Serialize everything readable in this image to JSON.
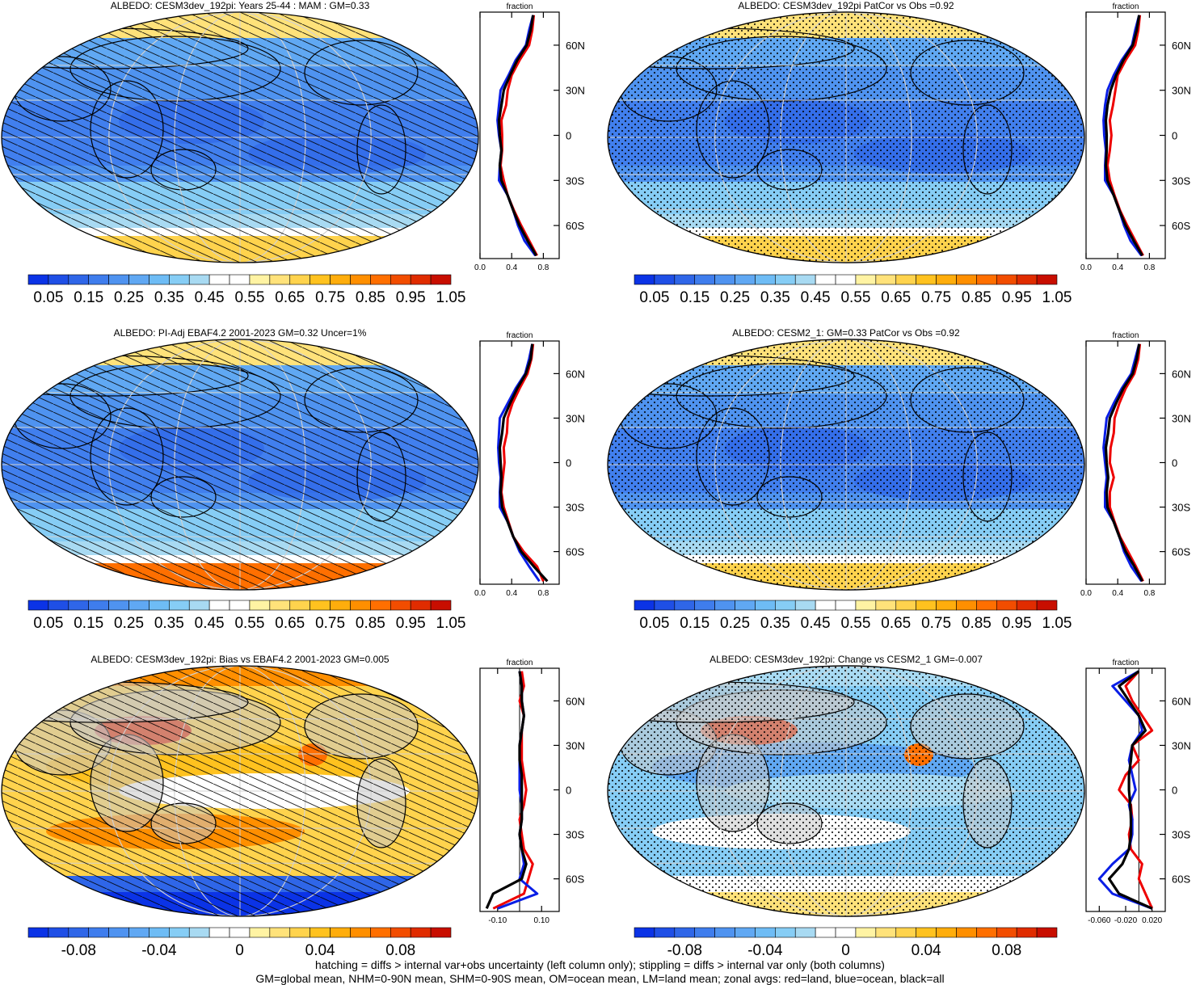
{
  "colors": {
    "abs_scale": [
      "#0b33e6",
      "#1f4fe6",
      "#2f66e8",
      "#3f7ded",
      "#4f93f0",
      "#60a8f3",
      "#6ebcf5",
      "#86cdf5",
      "#a8daf2",
      "#ffffff",
      "#ffffff",
      "#fff3a3",
      "#ffe27a",
      "#ffd34d",
      "#ffc21f",
      "#ffad0c",
      "#ff8f00",
      "#ff6f00",
      "#f24d00",
      "#e02c00",
      "#c80e00"
    ],
    "diff_scale": [
      "#0b33e6",
      "#1f4fe6",
      "#2f66e8",
      "#3f7ded",
      "#4f93f0",
      "#60a8f3",
      "#6ebcf5",
      "#86cdf5",
      "#a8daf2",
      "#ffffff",
      "#ffffff",
      "#fff3a3",
      "#ffe27a",
      "#ffd34d",
      "#ffc21f",
      "#ffad0c",
      "#ff8f00",
      "#ff6f00",
      "#f24d00",
      "#e02c00",
      "#c80e00"
    ],
    "land_gray": "#c8c8c8",
    "zonal_land": "#ee0000",
    "zonal_ocean": "#0a1ee6",
    "zonal_all": "#000000"
  },
  "common": {
    "zonal_title": "fraction",
    "lat_labels": [
      "60N",
      "30N",
      "0",
      "30S",
      "60S"
    ],
    "abs_ticks": [
      "0.05",
      "0.15",
      "0.25",
      "0.35",
      "0.45",
      "0.55",
      "0.65",
      "0.75",
      "0.85",
      "0.95",
      "1.05"
    ],
    "diff_ticks": [
      "-0.08",
      "-0.04",
      "0",
      "0.04",
      "0.08"
    ]
  },
  "panels": [
    {
      "id": "p1",
      "title": "ALBEDO: CESM3dev_192pi: Years 25-44 : MAM : GM=0.33",
      "kind": "abs",
      "overlay": "hatch",
      "zonal_ticks": [
        "0.0",
        "0.4",
        "0.8"
      ]
    },
    {
      "id": "p2",
      "title": "ALBEDO: CESM3dev_192pi PatCor vs Obs =0.92",
      "kind": "abs",
      "overlay": "stipple",
      "zonal_ticks": [
        "0.0",
        "0.4",
        "0.8"
      ]
    },
    {
      "id": "p3",
      "title": "ALBEDO: PI-Adj EBAF4.2 2001-2023 GM=0.32 Uncer=1%",
      "kind": "abs",
      "overlay": "hatch",
      "zonal_ticks": [
        "0.0",
        "0.4",
        "0.8"
      ]
    },
    {
      "id": "p4",
      "title": "ALBEDO: CESM2_1: GM=0.33 PatCor vs Obs =0.92",
      "kind": "abs",
      "overlay": "stipple",
      "zonal_ticks": [
        "0.0",
        "0.4",
        "0.8"
      ]
    },
    {
      "id": "p5",
      "title": "ALBEDO: CESM3dev_192pi: Bias vs EBAF4.2 2001-2023 GM=0.005",
      "kind": "diff",
      "overlay": "hatch",
      "zonal_ticks": [
        "-0.10",
        "0.10"
      ]
    },
    {
      "id": "p6",
      "title": "ALBEDO: CESM3dev_192pi: Change vs CESM2_1 GM=-0.007",
      "kind": "diff",
      "overlay": "stipple",
      "zonal_ticks": [
        "-0.060",
        "-0.020",
        "0.020"
      ]
    }
  ],
  "chart_data": [
    {
      "type": "line",
      "title": "fraction",
      "panel": "p1",
      "x_label": "fraction",
      "y": "latitude",
      "xlim": [
        0.0,
        1.0
      ],
      "x_ticks": [
        0.0,
        0.4,
        0.8
      ],
      "lat": [
        80,
        70,
        60,
        50,
        40,
        30,
        20,
        10,
        0,
        -10,
        -20,
        -30,
        -40,
        -50,
        -60,
        -70,
        -80
      ],
      "series": [
        {
          "name": "red=land",
          "values": [
            0.68,
            0.66,
            0.62,
            0.5,
            0.4,
            0.35,
            0.33,
            0.27,
            0.28,
            0.28,
            0.26,
            0.3,
            0.35,
            0.43,
            0.52,
            0.62,
            0.72
          ]
        },
        {
          "name": "blue=ocean",
          "values": [
            0.67,
            0.62,
            0.58,
            0.45,
            0.36,
            0.26,
            0.24,
            0.22,
            0.24,
            0.27,
            0.25,
            0.24,
            0.35,
            0.42,
            0.48,
            0.56,
            0.7
          ]
        },
        {
          "name": "black=all",
          "values": [
            0.67,
            0.64,
            0.59,
            0.47,
            0.38,
            0.3,
            0.27,
            0.24,
            0.25,
            0.27,
            0.25,
            0.27,
            0.35,
            0.42,
            0.5,
            0.6,
            0.71
          ]
        }
      ]
    },
    {
      "type": "line",
      "title": "fraction",
      "panel": "p2",
      "x_label": "fraction",
      "y": "latitude",
      "xlim": [
        0.0,
        1.0
      ],
      "x_ticks": [
        0.0,
        0.4,
        0.8
      ],
      "lat": [
        80,
        70,
        60,
        50,
        40,
        30,
        20,
        10,
        0,
        -10,
        -20,
        -30,
        -40,
        -50,
        -60,
        -70,
        -80
      ],
      "series": [
        {
          "name": "red=land",
          "values": [
            0.68,
            0.66,
            0.62,
            0.5,
            0.4,
            0.37,
            0.34,
            0.3,
            0.32,
            0.3,
            0.27,
            0.3,
            0.36,
            0.43,
            0.52,
            0.62,
            0.72
          ]
        },
        {
          "name": "blue=ocean",
          "values": [
            0.67,
            0.62,
            0.58,
            0.45,
            0.35,
            0.27,
            0.24,
            0.22,
            0.23,
            0.25,
            0.24,
            0.24,
            0.35,
            0.42,
            0.48,
            0.56,
            0.7
          ]
        },
        {
          "name": "black=all",
          "values": [
            0.67,
            0.64,
            0.59,
            0.47,
            0.38,
            0.31,
            0.27,
            0.25,
            0.26,
            0.26,
            0.25,
            0.27,
            0.35,
            0.42,
            0.5,
            0.6,
            0.71
          ]
        }
      ]
    },
    {
      "type": "line",
      "title": "fraction",
      "panel": "p3",
      "x_label": "fraction",
      "y": "latitude",
      "xlim": [
        0.0,
        1.0
      ],
      "x_ticks": [
        0.0,
        0.4,
        0.8
      ],
      "lat": [
        80,
        70,
        60,
        50,
        40,
        30,
        20,
        10,
        0,
        -10,
        -20,
        -30,
        -40,
        -50,
        -60,
        -70,
        -80
      ],
      "series": [
        {
          "name": "red=land",
          "values": [
            0.67,
            0.65,
            0.6,
            0.5,
            0.41,
            0.35,
            0.34,
            0.3,
            0.31,
            0.29,
            0.27,
            0.3,
            0.36,
            0.42,
            0.55,
            0.72,
            0.8
          ]
        },
        {
          "name": "blue=ocean",
          "values": [
            0.66,
            0.62,
            0.57,
            0.45,
            0.35,
            0.25,
            0.24,
            0.23,
            0.24,
            0.26,
            0.25,
            0.25,
            0.35,
            0.42,
            0.5,
            0.62,
            0.75
          ]
        },
        {
          "name": "black=all",
          "values": [
            0.66,
            0.64,
            0.58,
            0.47,
            0.38,
            0.3,
            0.28,
            0.25,
            0.26,
            0.27,
            0.26,
            0.28,
            0.35,
            0.42,
            0.52,
            0.68,
            0.85
          ]
        }
      ]
    },
    {
      "type": "line",
      "title": "fraction",
      "panel": "p4",
      "x_label": "fraction",
      "y": "latitude",
      "xlim": [
        0.0,
        1.0
      ],
      "x_ticks": [
        0.0,
        0.4,
        0.8
      ],
      "lat": [
        80,
        70,
        60,
        50,
        40,
        30,
        20,
        10,
        0,
        -10,
        -20,
        -30,
        -40,
        -50,
        -60,
        -70,
        -80
      ],
      "series": [
        {
          "name": "red=land",
          "values": [
            0.68,
            0.66,
            0.61,
            0.5,
            0.42,
            0.36,
            0.35,
            0.31,
            0.3,
            0.35,
            0.3,
            0.3,
            0.36,
            0.43,
            0.53,
            0.63,
            0.72
          ]
        },
        {
          "name": "blue=ocean",
          "values": [
            0.67,
            0.62,
            0.57,
            0.45,
            0.35,
            0.26,
            0.24,
            0.22,
            0.24,
            0.26,
            0.24,
            0.24,
            0.35,
            0.42,
            0.48,
            0.57,
            0.7
          ]
        },
        {
          "name": "black=all",
          "values": [
            0.67,
            0.64,
            0.59,
            0.47,
            0.38,
            0.3,
            0.28,
            0.25,
            0.26,
            0.28,
            0.26,
            0.27,
            0.35,
            0.42,
            0.5,
            0.61,
            0.71
          ]
        }
      ]
    },
    {
      "type": "line",
      "title": "fraction",
      "panel": "p5",
      "x_label": "fraction",
      "y": "latitude",
      "xlim": [
        -0.18,
        0.18
      ],
      "x_ticks": [
        -0.1,
        0.1
      ],
      "lat": [
        80,
        70,
        60,
        50,
        40,
        30,
        20,
        10,
        0,
        -10,
        -20,
        -30,
        -40,
        -50,
        -60,
        -70,
        -80
      ],
      "series": [
        {
          "name": "red=land",
          "values": [
            0.01,
            0.02,
            0.0,
            0.02,
            0.01,
            0.01,
            0.01,
            0.02,
            0.03,
            0.02,
            0.0,
            0.01,
            0.02,
            0.06,
            0.04,
            0.02,
            -0.12
          ]
        },
        {
          "name": "blue=ocean",
          "values": [
            0.0,
            0.01,
            0.01,
            0.02,
            0.01,
            0.0,
            0.0,
            0.0,
            0.0,
            0.01,
            0.01,
            0.0,
            0.01,
            0.02,
            0.0,
            0.08,
            -0.1
          ]
        },
        {
          "name": "black=all",
          "values": [
            0.0,
            0.01,
            0.01,
            0.02,
            0.01,
            0.0,
            0.0,
            0.01,
            0.01,
            0.01,
            0.01,
            0.0,
            0.01,
            0.03,
            0.01,
            -0.12,
            -0.15
          ]
        }
      ]
    },
    {
      "type": "line",
      "title": "fraction",
      "panel": "p6",
      "x_label": "fraction",
      "y": "latitude",
      "xlim": [
        -0.08,
        0.04
      ],
      "x_ticks": [
        -0.06,
        -0.02,
        0.02
      ],
      "lat": [
        80,
        70,
        60,
        50,
        40,
        30,
        20,
        10,
        0,
        -10,
        -20,
        -30,
        -40,
        -50,
        -60,
        -70,
        -80
      ],
      "series": [
        {
          "name": "red=land",
          "values": [
            0.0,
            -0.02,
            -0.01,
            0.005,
            0.02,
            -0.01,
            0.0,
            -0.02,
            -0.03,
            -0.012,
            -0.01,
            -0.015,
            -0.012,
            0.005,
            0.0,
            0.01,
            0.02
          ]
        },
        {
          "name": "blue=ocean",
          "values": [
            0.0,
            -0.04,
            -0.02,
            0.0,
            0.005,
            -0.01,
            -0.015,
            -0.01,
            -0.005,
            -0.015,
            -0.01,
            -0.01,
            -0.015,
            -0.04,
            -0.06,
            -0.04,
            0.02
          ]
        },
        {
          "name": "black=all",
          "values": [
            0.0,
            -0.03,
            -0.015,
            0.0,
            0.01,
            -0.01,
            -0.012,
            -0.015,
            -0.015,
            -0.013,
            -0.012,
            -0.012,
            -0.015,
            -0.025,
            -0.045,
            -0.03,
            0.02
          ]
        }
      ]
    }
  ],
  "footer": {
    "line1": "hatching = diffs > internal var+obs uncertainty (left column only); stippling = diffs > internal var only (both columns)",
    "line2": "GM=global mean, NHM=0-90N mean, SHM=0-90S mean, OM=ocean mean, LM=land mean; zonal avgs: red=land, blue=ocean, black=all"
  }
}
